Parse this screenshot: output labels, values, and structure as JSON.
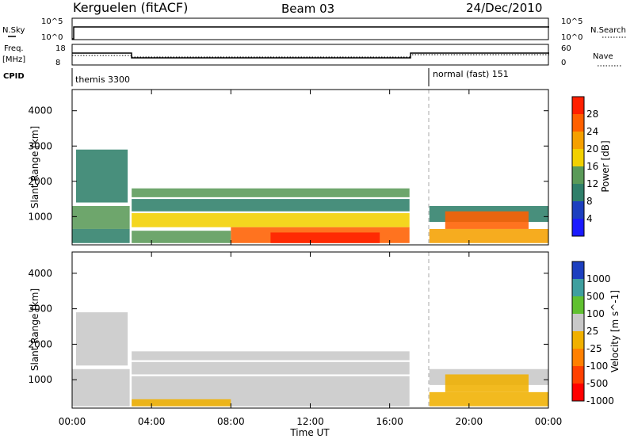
{
  "header": {
    "station": "Kerguelen (fitACF)",
    "beam": "Beam 03",
    "date": "24/Dec/2010"
  },
  "sky_panel": {
    "left_label": "N.Sky",
    "right_label": "N.Search",
    "left_ticks": [
      "10^5",
      "10^0"
    ],
    "right_ticks": [
      "10^5",
      "10^0"
    ]
  },
  "freq_panel": {
    "left_label_1": "Freq.",
    "left_label_2": "[MHz]",
    "right_label": "Nave",
    "left_ticks": [
      "18",
      "8"
    ],
    "right_ticks": [
      "60",
      "0"
    ]
  },
  "cpid": {
    "label": "CPID",
    "mode_1": "themis 3300",
    "mode_2": "normal (fast) 151"
  },
  "x_axis": {
    "label": "Time UT",
    "ticks": [
      "00:00",
      "04:00",
      "08:00",
      "12:00",
      "16:00",
      "20:00",
      "00:00"
    ],
    "range_hours": [
      0,
      24
    ]
  },
  "colors": {
    "power": [
      "#1a1aff",
      "#1c3fbf",
      "#2f7f6a",
      "#5a9a58",
      "#f2d000",
      "#f5a000",
      "#ff6000",
      "#ff2000"
    ],
    "velocity": [
      "#1c3fbf",
      "#3f9f9f",
      "#60c030",
      "#c8c8c8",
      "#f0b000",
      "#ff8000",
      "#ff4000",
      "#ff0000"
    ]
  },
  "chart_data": [
    {
      "type": "heatmap",
      "title": "",
      "ylabel": "Slant Range [km]",
      "xlabel": "",
      "ylim": [
        200,
        4600
      ],
      "yticks": [
        "1000",
        "2000",
        "3000",
        "4000"
      ],
      "colorbar": {
        "label": "Power [dB]",
        "ticks": [
          "28",
          "24",
          "20",
          "16",
          "12",
          "8",
          "4"
        ],
        "range": [
          0,
          32
        ]
      },
      "bands": [
        {
          "t0": 0,
          "t1": 2.9,
          "r0": 650,
          "r1": 1300,
          "v": 14
        },
        {
          "t0": 0,
          "t1": 2.9,
          "r0": 250,
          "r1": 650,
          "v": 8
        },
        {
          "t0": 0.2,
          "t1": 2.8,
          "r0": 1400,
          "r1": 2900,
          "v": 8
        },
        {
          "t0": 3.0,
          "t1": 17.0,
          "r0": 1550,
          "r1": 1800,
          "v": 12
        },
        {
          "t0": 3.0,
          "t1": 17.0,
          "r0": 1150,
          "r1": 1500,
          "v": 10
        },
        {
          "t0": 3.0,
          "t1": 17.0,
          "r0": 700,
          "r1": 1100,
          "v": 16
        },
        {
          "t0": 8.0,
          "t1": 17.0,
          "r0": 250,
          "r1": 700,
          "v": 24
        },
        {
          "t0": 10.0,
          "t1": 15.5,
          "r0": 250,
          "r1": 550,
          "v": 30
        },
        {
          "t0": 3.0,
          "t1": 8.0,
          "r0": 250,
          "r1": 600,
          "v": 14
        },
        {
          "t0": 18.0,
          "t1": 24.0,
          "r0": 850,
          "r1": 1300,
          "v": 8
        },
        {
          "t0": 18.8,
          "t1": 23.0,
          "r0": 650,
          "r1": 1150,
          "v": 24
        },
        {
          "t0": 18.0,
          "t1": 24.0,
          "r0": 250,
          "r1": 650,
          "v": 20
        }
      ]
    },
    {
      "type": "heatmap",
      "title": "",
      "ylabel": "Slant Range [km]",
      "xlabel": "Time UT",
      "ylim": [
        200,
        4600
      ],
      "yticks": [
        "1000",
        "2000",
        "3000",
        "4000"
      ],
      "colorbar": {
        "label": "Velocity [m s^-1]",
        "ticks": [
          "1000",
          "500",
          "100",
          "25",
          "-25",
          "-100",
          "-500",
          "-1000"
        ],
        "range": [
          -1200,
          1200
        ]
      },
      "bands": [
        {
          "t0": 0,
          "t1": 2.9,
          "r0": 250,
          "r1": 1300,
          "v": 0
        },
        {
          "t0": 0.2,
          "t1": 2.8,
          "r0": 1400,
          "r1": 2900,
          "v": 0
        },
        {
          "t0": 3.0,
          "t1": 17.0,
          "r0": 1550,
          "r1": 1800,
          "v": 0
        },
        {
          "t0": 3.0,
          "t1": 17.0,
          "r0": 1150,
          "r1": 1500,
          "v": 0
        },
        {
          "t0": 3.0,
          "t1": 17.0,
          "r0": 250,
          "r1": 1100,
          "v": 0
        },
        {
          "t0": 3.0,
          "t1": 8.0,
          "r0": 250,
          "r1": 450,
          "v": -150
        },
        {
          "t0": 18.0,
          "t1": 24.0,
          "r0": 850,
          "r1": 1300,
          "v": 0
        },
        {
          "t0": 18.8,
          "t1": 23.0,
          "r0": 650,
          "r1": 1150,
          "v": -200
        },
        {
          "t0": 18.0,
          "t1": 24.0,
          "r0": 250,
          "r1": 650,
          "v": -120
        }
      ]
    }
  ]
}
